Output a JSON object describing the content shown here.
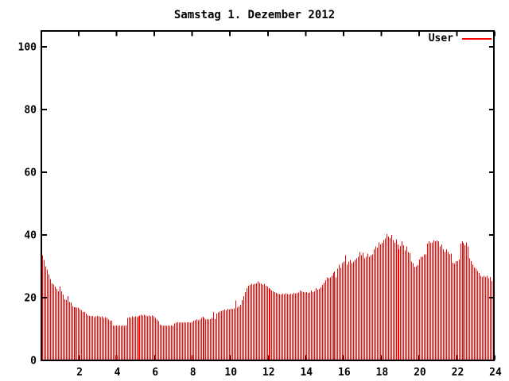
{
  "chart_data": {
    "type": "bar",
    "title": "Samstag 1. Dezember 2012",
    "legend": {
      "label": "User",
      "position": "top-right-inside"
    },
    "xlabel": "",
    "ylabel": "",
    "x_unit": "hour of day",
    "sample_interval_minutes": 5,
    "xlim": [
      0,
      24
    ],
    "ylim": [
      0,
      105
    ],
    "x_ticks": [
      2,
      4,
      6,
      8,
      10,
      12,
      14,
      16,
      18,
      20,
      22,
      24
    ],
    "y_ticks": [
      0,
      20,
      40,
      60,
      80,
      100
    ],
    "grid": false,
    "bar_color": "#ff0000",
    "axis_color": "#000000",
    "background_color": "#ffffff",
    "values": [
      33.5,
      32,
      30,
      29,
      27.5,
      26,
      24.5,
      24.2,
      23.5,
      22.8,
      22,
      23.5,
      22,
      21,
      19.5,
      19.3,
      20.5,
      18.6,
      18.5,
      17.3,
      17,
      17,
      16.8,
      16.8,
      16.3,
      16,
      15.5,
      15.5,
      15,
      14.3,
      14.2,
      14,
      14.2,
      13.8,
      14,
      14.2,
      14,
      13.8,
      14,
      13.5,
      13.8,
      13.5,
      13,
      12.7,
      12.7,
      11.2,
      11,
      11.2,
      11,
      11.2,
      11,
      11.2,
      11,
      11.2,
      13.5,
      13.8,
      13.5,
      14,
      13.8,
      14,
      13.8,
      14,
      14.3,
      14.5,
      14.3,
      14.5,
      14.3,
      14,
      14.3,
      14,
      14.3,
      14,
      13.5,
      13,
      12.5,
      11.4,
      11.2,
      11,
      11.2,
      11,
      11.2,
      11,
      11.2,
      11,
      11.8,
      12,
      12.2,
      12,
      12.2,
      12,
      12.2,
      12,
      12.2,
      12.2,
      12,
      12.2,
      12.7,
      12.8,
      13,
      12.8,
      13.1,
      13.5,
      13.9,
      13.5,
      13,
      13.2,
      13,
      13.2,
      13.5,
      15.4,
      13.2,
      15,
      15.3,
      15.6,
      15.8,
      16,
      16.2,
      16,
      16.4,
      16.2,
      16.5,
      16.3,
      16.6,
      19.1,
      16.8,
      17.2,
      17.7,
      19.3,
      20.5,
      21.8,
      23,
      23.8,
      24,
      24.4,
      24.2,
      24.4,
      24.6,
      25.2,
      24.7,
      24.4,
      24,
      24.4,
      23.8,
      23.5,
      23,
      22.8,
      22.3,
      22,
      21.8,
      21.5,
      21.3,
      21.2,
      21,
      21.3,
      21.2,
      21.4,
      21.2,
      21,
      21.3,
      21.2,
      21.5,
      21.3,
      21.5,
      21.7,
      22.3,
      22,
      21.8,
      21.6,
      21.8,
      21.5,
      21.6,
      22.3,
      21.8,
      22,
      23,
      22.5,
      22.8,
      23.3,
      24,
      24.7,
      25.6,
      26.4,
      26.2,
      26.4,
      27,
      28,
      28.3,
      26.5,
      29.3,
      30.5,
      29.5,
      31,
      31.5,
      33.5,
      30.5,
      31.5,
      32,
      31,
      31.5,
      32,
      32.5,
      33,
      34.6,
      33.5,
      34.3,
      32.5,
      33,
      34,
      33,
      33.5,
      33.8,
      35.5,
      36.3,
      36,
      37.6,
      37,
      37.5,
      38.4,
      38.9,
      40.3,
      39.5,
      39,
      40,
      38.4,
      37.6,
      38.6,
      37,
      35.5,
      36.5,
      38,
      36.7,
      35.1,
      36.3,
      34.6,
      34.2,
      31.5,
      31,
      29.8,
      30,
      30.4,
      32.1,
      33,
      33,
      33.8,
      33.8,
      37.2,
      38,
      37.5,
      37.6,
      38.4,
      38,
      38.2,
      38,
      36.3,
      37,
      35.5,
      34.6,
      35.5,
      34.6,
      33.8,
      34,
      31.2,
      30.8,
      31.7,
      31.7,
      32.1,
      37.2,
      38,
      37.5,
      36.7,
      37.6,
      36.3,
      32.5,
      31.7,
      30.5,
      29.6,
      29.2,
      28.5,
      27.9,
      27,
      26.6,
      27,
      26.6,
      27,
      26.2,
      26.6,
      25.3,
      24.9
    ]
  }
}
